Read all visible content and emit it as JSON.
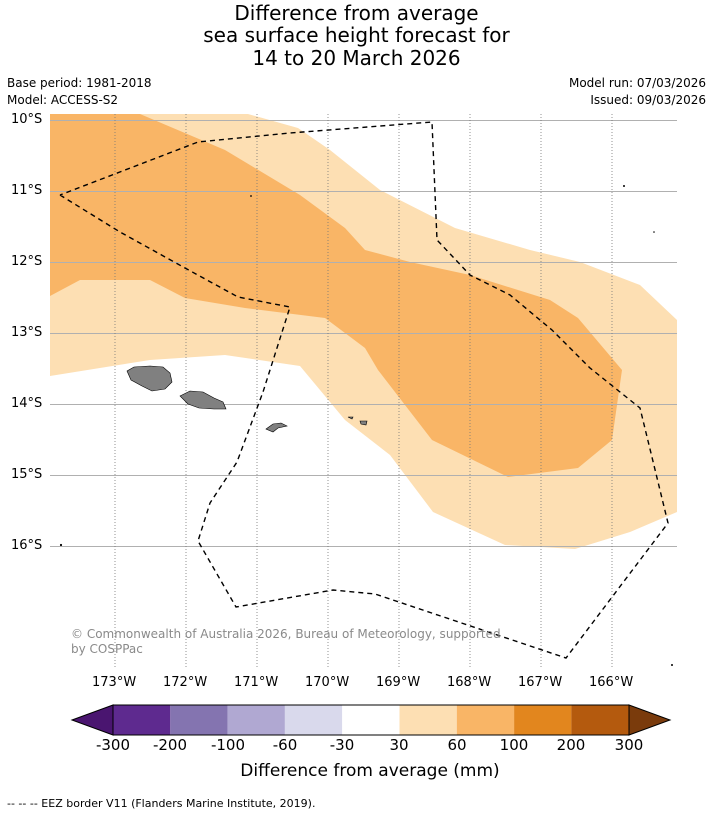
{
  "title": {
    "line1": "Difference from average",
    "line2": "sea surface height forecast for",
    "line3": "14 to 20 March 2026"
  },
  "meta": {
    "base_period": "Base period: 1981-2018",
    "model": "Model: ACCESS-S2",
    "model_run": "Model run: 07/03/2026",
    "issued": "Issued: 09/03/2026"
  },
  "lat_labels": [
    "10°S",
    "11°S",
    "12°S",
    "13°S",
    "14°S",
    "15°S",
    "16°S"
  ],
  "lon_labels": [
    "173°W",
    "172°W",
    "171°W",
    "170°W",
    "169°W",
    "168°W",
    "167°W",
    "166°W"
  ],
  "copyright": {
    "line1": "© Commonwealth of Australia 2026, Bureau of Meteorology, supported",
    "line2": "by COSPPac"
  },
  "colorbar": {
    "title": "Difference from average (mm)",
    "ticks": [
      "-300",
      "-200",
      "-100",
      "-60",
      "-30",
      "30",
      "60",
      "100",
      "200",
      "300"
    ],
    "colors": [
      "#4a1570",
      "#5e2a8f",
      "#8474b0",
      "#b0a8d2",
      "#d9d9ec",
      "#ffffff",
      "#fddfb3",
      "#f9b566",
      "#e2861e",
      "#b45a0e",
      "#7a3b0c"
    ]
  },
  "legend_footer": "--  --  -- EEZ border V11 (Flanders Marine Institute, 2019).",
  "colors": {
    "band_30_60": "#fddfb3",
    "band_60_100": "#f9b566",
    "land": "#808080",
    "grid": "#b0b0b0",
    "eez": "#000000"
  }
}
